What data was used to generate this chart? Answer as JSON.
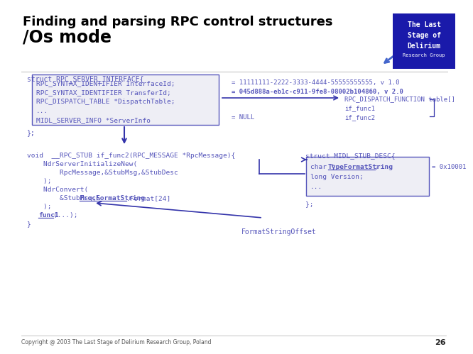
{
  "bg_color": "#ffffff",
  "title_line1": "Finding and parsing RPC control structures",
  "title_line2": "/Os mode",
  "logo_bg": "#1a1aaa",
  "logo_text_bold": [
    "The Last",
    "Stage of",
    "Delirium"
  ],
  "logo_text_small": "Research Group",
  "footer": "Copyright @ 2003 The Last Stage of Delirium Research Group, Poland",
  "page_num": "26",
  "code_color": "#5555bb",
  "bold_annot_color": "#4444aa",
  "box_bg": "#eeeef5",
  "box_border": "#5555bb",
  "arrow_color": "#3333aa",
  "struct_header": "struct RPC_SERVER_INTERFACE{",
  "struct_fields": [
    "RPC_SYNTAX_IDENTIFIER InterfaceId;",
    "RPC_SYNTAX_IDENTIFIER TransferId;",
    "RPC_DISPATCH_TABLE *DispatchTable;",
    "...",
    "MIDL_SERVER_INFO *ServerInfo"
  ],
  "struct_footer": "};",
  "annot1": "= 11111111-2222-3333-4444-55555555555, v 1.0",
  "annot2": "= 045d888a-eb1c-c911-9fe8-08002b104860, v 2.0",
  "annot3": "RPC_DISPATCH_FUNCTION table[]",
  "annot4": "if_func1",
  "annot5": "if_func2",
  "annot_null": "= NULL",
  "func_line0": "void  __RPC_STUB if_func2(RPC_MESSAGE *RpcMessage){",
  "func_line1": "    NdrServerInitializeNew(",
  "func_line2": "        RpcMessage,&StubMsg,&StubDesc",
  "func_line3": "    );",
  "func_line4": "    NdrConvert(",
  "func_line5_pre": "        &StubMsg,&",
  "func_line5_mid": "ProcFormatString",
  "func_line5_suf": ".Format[24]",
  "func_line6": "    );",
  "func_line7_pre": "    ",
  "func_line7_mid": "func1",
  "func_line7_suf": "(...);",
  "func_line8": "}",
  "stub_header": "struct MIDL_STUB_DESC{",
  "stub_field0_pre": "char *",
  "stub_field0_mid": "TypeFormatString",
  "stub_field0_suf": ";",
  "stub_field1": "long Version;",
  "stub_field2": "...",
  "stub_footer": "};",
  "stub_annotation": "= 0x10001",
  "format_annotation": "FormatStringOffset"
}
